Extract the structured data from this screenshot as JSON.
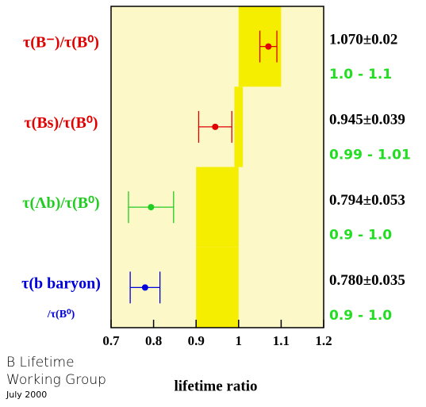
{
  "chart_data": {
    "type": "dotplot",
    "categories": [
      [
        "τ(B⁻)/τ(B⁰)"
      ],
      [
        "τ(Bs)/τ(B⁰)"
      ],
      [
        "τ(Λb)/τ(B⁰)"
      ],
      [
        "τ(b baryon)",
        "/τ(B⁰)"
      ]
    ],
    "values": [
      1.07,
      0.945,
      0.794,
      0.78
    ],
    "errors": [
      0.02,
      0.039,
      0.053,
      0.035
    ],
    "value_labels": [
      "1.070±0.02",
      "0.945±0.039",
      "0.794±0.053",
      "0.780±0.035"
    ],
    "colors": [
      "#e00000",
      "#e00000",
      "#22cc22",
      "#0000dd"
    ],
    "ranges": [
      [
        1.0,
        1.1
      ],
      [
        0.99,
        1.01
      ],
      [
        0.9,
        1.0
      ],
      [
        0.9,
        1.0
      ]
    ],
    "range_labels": [
      "1.0 - 1.1",
      "0.99 - 1.01",
      "0.9 - 1.0",
      "0.9 - 1.0"
    ],
    "range_color": "#f5ee00",
    "range_label_color": "#22dd22",
    "background": "#fdf8c8",
    "xlim": [
      0.7,
      1.2
    ],
    "xticks": [
      0.7,
      0.8,
      0.9,
      1,
      1.1,
      1.2
    ],
    "xlabel": "lifetime ratio",
    "annotations": [
      "B Lifetime",
      "Working Group",
      "July 2000"
    ]
  }
}
